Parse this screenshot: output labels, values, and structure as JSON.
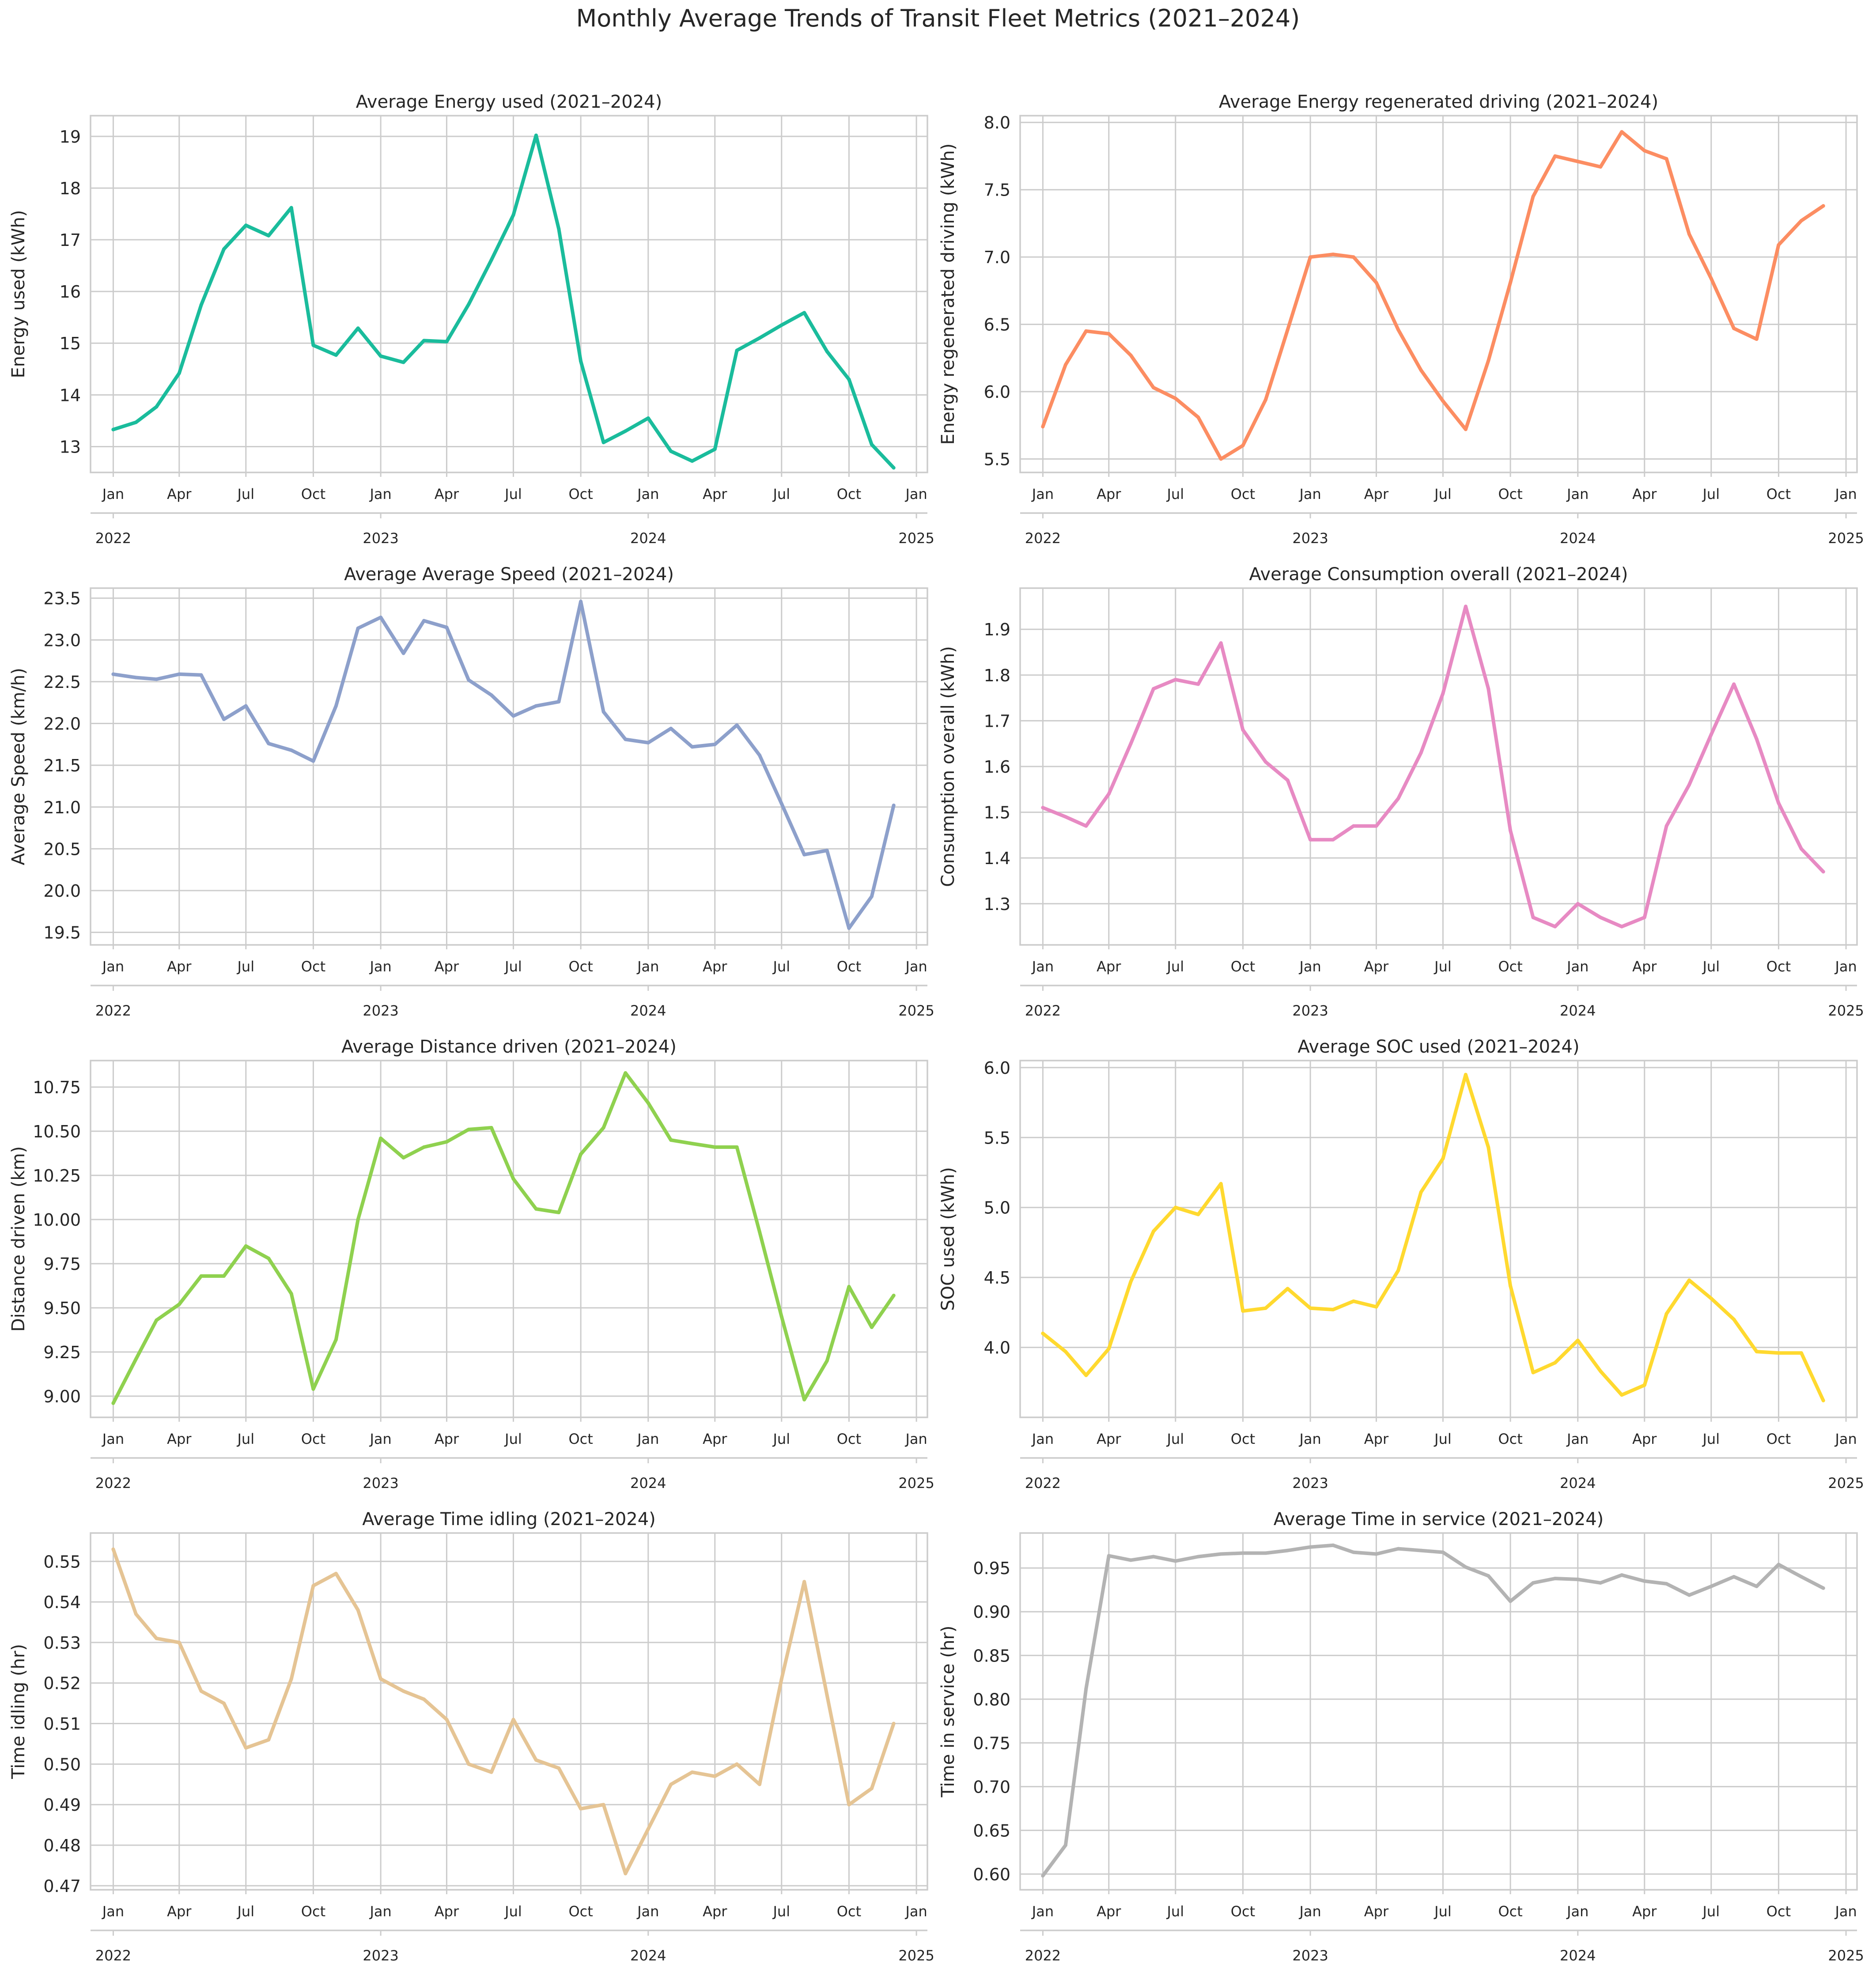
{
  "figure": {
    "title": "Monthly Average Trends of Transit Fleet Metrics (2021–2024)"
  },
  "colors": {
    "energy_used": "#1abc9c",
    "energy_regen": "#fc8d62",
    "avg_speed": "#8da0cb",
    "consumption": "#e78ac3",
    "distance": "#8fd14f",
    "soc_used": "#ffd92f",
    "idling": "#e5c494",
    "service": "#b3b3b3"
  },
  "x_axis": {
    "month_ticks": [
      "Jan",
      "Apr",
      "Jul",
      "Oct",
      "Jan",
      "Apr",
      "Jul",
      "Oct",
      "Jan",
      "Apr",
      "Jul",
      "Oct",
      "Jan"
    ],
    "year_ticks": [
      "2022",
      "2023",
      "2024",
      "2025"
    ]
  },
  "chart_data": [
    {
      "type": "line",
      "title": "Average Energy used (2021–2024)",
      "ylabel": "Energy used (kWh)",
      "ylim": [
        12.5,
        19.4
      ],
      "yticks": [
        13,
        14,
        15,
        16,
        17,
        18,
        19
      ],
      "ytick_labels": [
        "13",
        "14",
        "15",
        "16",
        "17",
        "18",
        "19"
      ],
      "x_start": "2022-01",
      "x": [
        "2022-01",
        "2022-02",
        "2022-03",
        "2022-04",
        "2022-05",
        "2022-06",
        "2022-07",
        "2022-08",
        "2022-09",
        "2022-10",
        "2022-11",
        "2022-12",
        "2023-01",
        "2023-02",
        "2023-03",
        "2023-04",
        "2023-05",
        "2023-06",
        "2023-07",
        "2023-08",
        "2023-09",
        "2023-10",
        "2023-11",
        "2023-12",
        "2024-01",
        "2024-02",
        "2024-03",
        "2024-04",
        "2024-05",
        "2024-06",
        "2024-07",
        "2024-08",
        "2024-09",
        "2024-10",
        "2024-11",
        "2024-12"
      ],
      "series": [
        {
          "color_key": "energy_used",
          "values": [
            13.33,
            13.47,
            13.77,
            14.42,
            15.74,
            16.82,
            17.28,
            17.08,
            17.62,
            14.96,
            14.77,
            15.29,
            14.75,
            14.63,
            15.05,
            15.03,
            15.75,
            16.61,
            17.48,
            19.02,
            17.21,
            14.65,
            13.08,
            13.3,
            13.55,
            12.91,
            12.72,
            12.95,
            14.86,
            15.1,
            15.35,
            15.59,
            14.84,
            14.3,
            13.04,
            12.59
          ]
        }
      ]
    },
    {
      "type": "line",
      "title": "Average Energy regenerated driving (2021–2024)",
      "ylabel": "Energy regenerated driving (kWh)",
      "ylim": [
        5.4,
        8.05
      ],
      "yticks": [
        5.5,
        6.0,
        6.5,
        7.0,
        7.5,
        8.0
      ],
      "ytick_labels": [
        "5.5",
        "6.0",
        "6.5",
        "7.0",
        "7.5",
        "8.0"
      ],
      "x": [
        "2022-01",
        "2022-02",
        "2022-03",
        "2022-04",
        "2022-05",
        "2022-06",
        "2022-07",
        "2022-08",
        "2022-09",
        "2022-10",
        "2022-11",
        "2022-12",
        "2023-01",
        "2023-02",
        "2023-03",
        "2023-04",
        "2023-05",
        "2023-06",
        "2023-07",
        "2023-08",
        "2023-09",
        "2023-10",
        "2023-11",
        "2023-12",
        "2024-01",
        "2024-02",
        "2024-03",
        "2024-04",
        "2024-05",
        "2024-06",
        "2024-07",
        "2024-08",
        "2024-09",
        "2024-10",
        "2024-11",
        "2024-12"
      ],
      "series": [
        {
          "color_key": "energy_regen",
          "values": [
            5.74,
            6.2,
            6.45,
            6.43,
            6.27,
            6.03,
            5.95,
            5.81,
            5.5,
            5.6,
            5.94,
            6.46,
            7.0,
            7.02,
            7.0,
            6.81,
            6.46,
            6.16,
            5.93,
            5.72,
            6.23,
            6.81,
            7.45,
            7.75,
            7.71,
            7.67,
            7.93,
            7.79,
            7.73,
            7.17,
            6.84,
            6.47,
            6.39,
            7.09,
            7.27,
            7.38
          ]
        }
      ]
    },
    {
      "type": "line",
      "title": "Average Average Speed (2021–2024)",
      "ylabel": "Average Speed (km/h)",
      "ylim": [
        19.35,
        23.62
      ],
      "yticks": [
        19.5,
        20.0,
        20.5,
        21.0,
        21.5,
        22.0,
        22.5,
        23.0,
        23.5
      ],
      "ytick_labels": [
        "19.5",
        "20.0",
        "20.5",
        "21.0",
        "21.5",
        "22.0",
        "22.5",
        "23.0",
        "23.5"
      ],
      "x": [
        "2022-01",
        "2022-02",
        "2022-03",
        "2022-04",
        "2022-05",
        "2022-06",
        "2022-07",
        "2022-08",
        "2022-09",
        "2022-10",
        "2022-11",
        "2022-12",
        "2023-01",
        "2023-02",
        "2023-03",
        "2023-04",
        "2023-05",
        "2023-06",
        "2023-07",
        "2023-08",
        "2023-09",
        "2023-10",
        "2023-11",
        "2023-12",
        "2024-01",
        "2024-02",
        "2024-03",
        "2024-04",
        "2024-05",
        "2024-06",
        "2024-07",
        "2024-08",
        "2024-09",
        "2024-10",
        "2024-11",
        "2024-12"
      ],
      "series": [
        {
          "color_key": "avg_speed",
          "values": [
            22.59,
            22.55,
            22.53,
            22.59,
            22.58,
            22.05,
            22.21,
            21.76,
            21.68,
            21.55,
            22.21,
            23.14,
            23.27,
            22.84,
            23.23,
            23.15,
            22.52,
            22.34,
            22.09,
            22.21,
            22.26,
            23.46,
            22.14,
            21.81,
            21.77,
            21.94,
            21.72,
            21.75,
            21.98,
            21.62,
            21.04,
            20.43,
            20.48,
            19.55,
            19.93,
            21.02
          ]
        }
      ]
    },
    {
      "type": "line",
      "title": "Average Consumption overall (2021–2024)",
      "ylabel": "Consumption overall (kWh)",
      "ylim": [
        1.21,
        1.99
      ],
      "yticks": [
        1.3,
        1.4,
        1.5,
        1.6,
        1.7,
        1.8,
        1.9
      ],
      "ytick_labels": [
        "1.3",
        "1.4",
        "1.5",
        "1.6",
        "1.7",
        "1.8",
        "1.9"
      ],
      "x": [
        "2022-01",
        "2022-02",
        "2022-03",
        "2022-04",
        "2022-05",
        "2022-06",
        "2022-07",
        "2022-08",
        "2022-09",
        "2022-10",
        "2022-11",
        "2022-12",
        "2023-01",
        "2023-02",
        "2023-03",
        "2023-04",
        "2023-05",
        "2023-06",
        "2023-07",
        "2023-08",
        "2023-09",
        "2023-10",
        "2023-11",
        "2023-12",
        "2024-01",
        "2024-02",
        "2024-03",
        "2024-04",
        "2024-05",
        "2024-06",
        "2024-07",
        "2024-08",
        "2024-09",
        "2024-10",
        "2024-11",
        "2024-12"
      ],
      "series": [
        {
          "color_key": "consumption",
          "values": [
            1.51,
            1.49,
            1.47,
            1.54,
            1.65,
            1.77,
            1.79,
            1.78,
            1.87,
            1.68,
            1.61,
            1.57,
            1.44,
            1.44,
            1.47,
            1.47,
            1.53,
            1.63,
            1.76,
            1.95,
            1.77,
            1.46,
            1.27,
            1.25,
            1.3,
            1.27,
            1.25,
            1.27,
            1.47,
            1.56,
            1.67,
            1.78,
            1.66,
            1.52,
            1.42,
            1.37
          ]
        }
      ]
    },
    {
      "type": "line",
      "title": "Average Distance driven (2021–2024)",
      "ylabel": "Distance driven (km)",
      "ylim": [
        8.88,
        10.9
      ],
      "yticks": [
        9.0,
        9.25,
        9.5,
        9.75,
        10.0,
        10.25,
        10.5,
        10.75
      ],
      "ytick_labels": [
        "9.00",
        "9.25",
        "9.50",
        "9.75",
        "10.00",
        "10.25",
        "10.50",
        "10.75"
      ],
      "x": [
        "2022-01",
        "2022-02",
        "2022-03",
        "2022-04",
        "2022-05",
        "2022-06",
        "2022-07",
        "2022-08",
        "2022-09",
        "2022-10",
        "2022-11",
        "2022-12",
        "2023-01",
        "2023-02",
        "2023-03",
        "2023-04",
        "2023-05",
        "2023-06",
        "2023-07",
        "2023-08",
        "2023-09",
        "2023-10",
        "2023-11",
        "2023-12",
        "2024-01",
        "2024-02",
        "2024-03",
        "2024-04",
        "2024-05",
        "2024-06",
        "2024-07",
        "2024-08",
        "2024-09",
        "2024-10",
        "2024-11",
        "2024-12"
      ],
      "series": [
        {
          "color_key": "distance",
          "values": [
            8.96,
            9.21,
            9.43,
            9.52,
            9.68,
            9.68,
            9.85,
            9.78,
            9.58,
            9.04,
            9.32,
            10.0,
            10.46,
            10.35,
            10.41,
            10.44,
            10.51,
            10.52,
            10.23,
            10.06,
            10.04,
            10.37,
            10.52,
            10.83,
            10.66,
            10.45,
            10.43,
            10.41,
            10.41,
            9.93,
            9.45,
            8.98,
            9.2,
            9.62,
            9.39,
            9.57
          ]
        }
      ]
    },
    {
      "type": "line",
      "title": "Average SOC used (2021–2024)",
      "ylabel": "SOC used (kWh)",
      "ylim": [
        3.5,
        6.05
      ],
      "yticks": [
        4.0,
        4.5,
        5.0,
        5.5,
        6.0
      ],
      "ytick_labels": [
        "4.0",
        "4.5",
        "5.0",
        "5.5",
        "6.0"
      ],
      "x": [
        "2022-01",
        "2022-02",
        "2022-03",
        "2022-04",
        "2022-05",
        "2022-06",
        "2022-07",
        "2022-08",
        "2022-09",
        "2022-10",
        "2022-11",
        "2022-12",
        "2023-01",
        "2023-02",
        "2023-03",
        "2023-04",
        "2023-05",
        "2023-06",
        "2023-07",
        "2023-08",
        "2023-09",
        "2023-10",
        "2023-11",
        "2023-12",
        "2024-01",
        "2024-02",
        "2024-03",
        "2024-04",
        "2024-05",
        "2024-06",
        "2024-07",
        "2024-08",
        "2024-09",
        "2024-10",
        "2024-11",
        "2024-12"
      ],
      "series": [
        {
          "color_key": "soc_used",
          "values": [
            4.1,
            3.97,
            3.8,
            3.99,
            4.47,
            4.83,
            5.0,
            4.95,
            5.17,
            4.26,
            4.28,
            4.42,
            4.28,
            4.27,
            4.33,
            4.29,
            4.55,
            5.11,
            5.35,
            5.95,
            5.43,
            4.44,
            3.82,
            3.89,
            4.05,
            3.83,
            3.66,
            3.73,
            4.24,
            4.48,
            4.35,
            4.2,
            3.97,
            3.96,
            3.96,
            3.62
          ]
        }
      ]
    },
    {
      "type": "line",
      "title": "Average Time idling (2021–2024)",
      "ylabel": "Time idling (hr)",
      "ylim": [
        0.469,
        0.557
      ],
      "yticks": [
        0.47,
        0.48,
        0.49,
        0.5,
        0.51,
        0.52,
        0.53,
        0.54,
        0.55
      ],
      "ytick_labels": [
        "0.47",
        "0.48",
        "0.49",
        "0.50",
        "0.51",
        "0.52",
        "0.53",
        "0.54",
        "0.55"
      ],
      "x": [
        "2022-01",
        "2022-02",
        "2022-03",
        "2022-04",
        "2022-05",
        "2022-06",
        "2022-07",
        "2022-08",
        "2022-09",
        "2022-10",
        "2022-11",
        "2022-12",
        "2023-01",
        "2023-02",
        "2023-03",
        "2023-04",
        "2023-05",
        "2023-06",
        "2023-07",
        "2023-08",
        "2023-09",
        "2023-10",
        "2023-11",
        "2023-12",
        "2024-01",
        "2024-02",
        "2024-03",
        "2024-04",
        "2024-05",
        "2024-06",
        "2024-07",
        "2024-08",
        "2024-09",
        "2024-10",
        "2024-11",
        "2024-12"
      ],
      "series": [
        {
          "color_key": "idling",
          "values": [
            0.553,
            0.537,
            0.531,
            0.53,
            0.518,
            0.515,
            0.504,
            0.506,
            0.521,
            0.544,
            0.547,
            0.538,
            0.521,
            0.518,
            0.516,
            0.511,
            0.5,
            0.498,
            0.511,
            0.501,
            0.499,
            0.489,
            0.49,
            0.473,
            0.484,
            0.495,
            0.498,
            0.497,
            0.5,
            0.495,
            0.521,
            0.545,
            0.517,
            0.49,
            0.494,
            0.51
          ]
        }
      ]
    },
    {
      "type": "line",
      "title": "Average Time in service (2021–2024)",
      "ylabel": "Time in service (hr)",
      "ylim": [
        0.582,
        0.99
      ],
      "yticks": [
        0.6,
        0.65,
        0.7,
        0.75,
        0.8,
        0.85,
        0.9,
        0.95
      ],
      "ytick_labels": [
        "0.60",
        "0.65",
        "0.70",
        "0.75",
        "0.80",
        "0.85",
        "0.90",
        "0.95"
      ],
      "x": [
        "2022-01",
        "2022-02",
        "2022-03",
        "2022-04",
        "2022-05",
        "2022-06",
        "2022-07",
        "2022-08",
        "2022-09",
        "2022-10",
        "2022-11",
        "2022-12",
        "2023-01",
        "2023-02",
        "2023-03",
        "2023-04",
        "2023-05",
        "2023-06",
        "2023-07",
        "2023-08",
        "2023-09",
        "2023-10",
        "2023-11",
        "2023-12",
        "2024-01",
        "2024-02",
        "2024-03",
        "2024-04",
        "2024-05",
        "2024-06",
        "2024-07",
        "2024-08",
        "2024-09",
        "2024-10",
        "2024-11",
        "2024-12"
      ],
      "series": [
        {
          "color_key": "service",
          "values": [
            0.598,
            0.633,
            0.812,
            0.964,
            0.959,
            0.963,
            0.958,
            0.963,
            0.966,
            0.967,
            0.967,
            0.97,
            0.974,
            0.976,
            0.968,
            0.966,
            0.972,
            0.97,
            0.968,
            0.951,
            0.941,
            0.912,
            0.933,
            0.938,
            0.937,
            0.933,
            0.942,
            0.935,
            0.932,
            0.919,
            0.929,
            0.94,
            0.929,
            0.954,
            0.94,
            0.927
          ]
        }
      ]
    }
  ]
}
